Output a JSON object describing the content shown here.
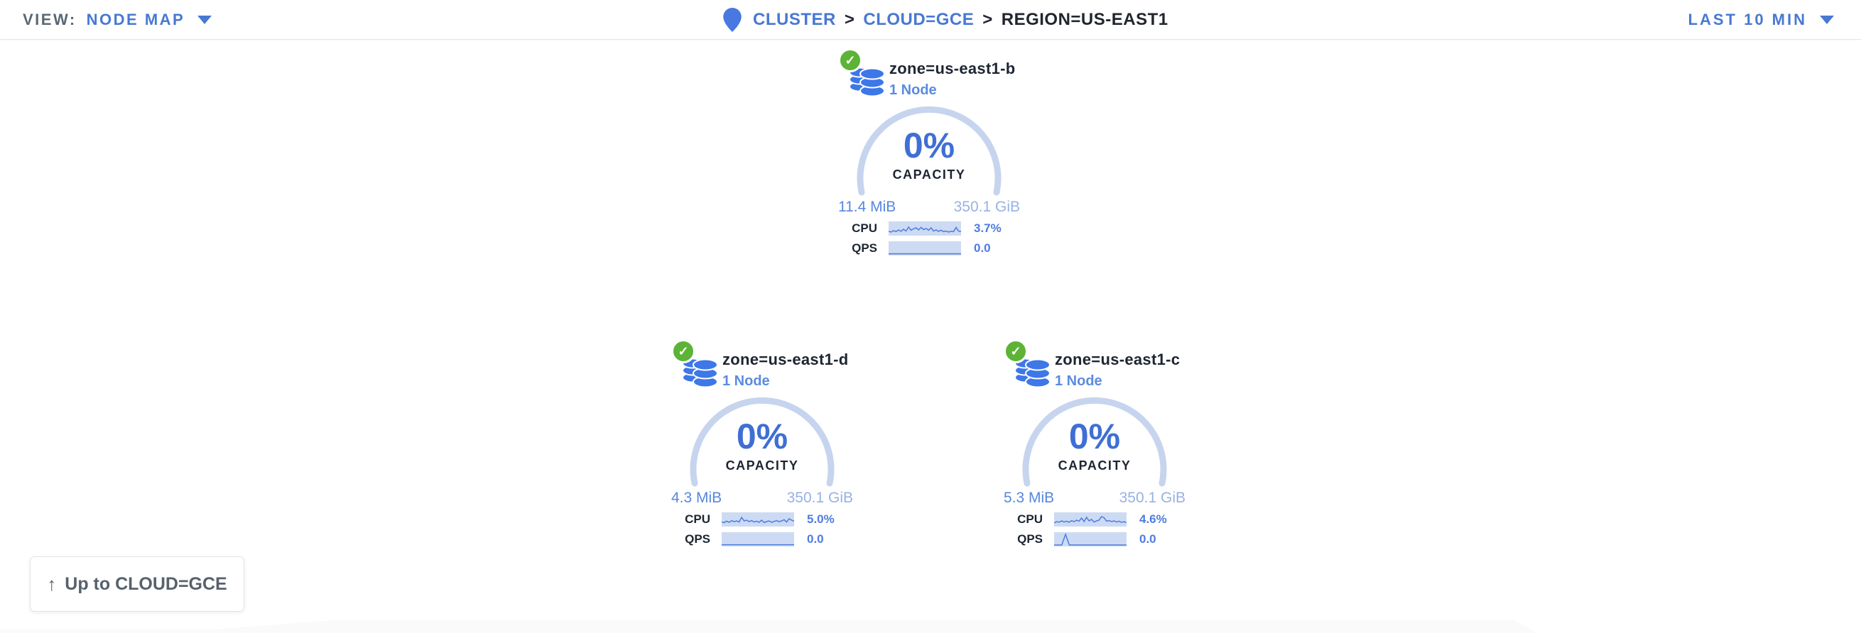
{
  "header": {
    "view_label": "VIEW:",
    "view_value": "NODE MAP",
    "time_range": "LAST 10 MIN",
    "breadcrumb": {
      "separator": ">",
      "items": [
        {
          "label": "CLUSTER"
        },
        {
          "label": "CLOUD=GCE"
        },
        {
          "label": "REGION=US-EAST1"
        }
      ]
    }
  },
  "icons": {
    "location_pin": "map-pin-shape",
    "chevron_down": "▼",
    "healthy_check": "✓",
    "zone": "database-cylinders",
    "up_arrow": "↑"
  },
  "colors": {
    "link_blue": "#4878d2",
    "pct_blue": "#3f6fd4",
    "subtitle_blue": "#5b8be0",
    "used_blue": "#5787dd",
    "total_blue": "#97b1e4",
    "arc_blue": "#c7d4ee",
    "spark_bg": "#cddaf3",
    "spark_line": "#4d7ce0",
    "healthy_green": "#5cb335",
    "db_icon_blue": "#3d77e8",
    "text_dark": "#1d2532"
  },
  "cards": [
    {
      "title": "zone=us-east1-b",
      "subtitle": "1 Node",
      "capacity_pct": "0%",
      "capacity_label": "CAPACITY",
      "used": "11.4 MiB",
      "total": "350.1 GiB",
      "metrics": [
        {
          "label": "CPU",
          "value": "3.7%",
          "spark": [
            0.7,
            0.75,
            0.65,
            0.72,
            0.6,
            0.7,
            0.55,
            0.68,
            0.4,
            0.62,
            0.52,
            0.45,
            0.6,
            0.42,
            0.58,
            0.5,
            0.62,
            0.45,
            0.68,
            0.6,
            0.7,
            0.62,
            0.72,
            0.68,
            0.75,
            0.7,
            0.72,
            0.42,
            0.68,
            0.72
          ]
        },
        {
          "label": "QPS",
          "value": "0.0",
          "spark": [
            0.88,
            0.88,
            0.88,
            0.88,
            0.88,
            0.88,
            0.88,
            0.88,
            0.88,
            0.88
          ]
        }
      ]
    },
    {
      "title": "zone=us-east1-d",
      "subtitle": "1 Node",
      "capacity_pct": "0%",
      "capacity_label": "CAPACITY",
      "used": "4.3 MiB",
      "total": "350.1 GiB",
      "metrics": [
        {
          "label": "CPU",
          "value": "5.0%",
          "spark": [
            0.68,
            0.72,
            0.62,
            0.7,
            0.58,
            0.66,
            0.6,
            0.68,
            0.35,
            0.6,
            0.55,
            0.65,
            0.58,
            0.68,
            0.62,
            0.7,
            0.55,
            0.72,
            0.65,
            0.6,
            0.7,
            0.64,
            0.58,
            0.66,
            0.6,
            0.52,
            0.68,
            0.45,
            0.55,
            0.62
          ]
        },
        {
          "label": "QPS",
          "value": "0.0",
          "spark": [
            0.88,
            0.88,
            0.88,
            0.88,
            0.88,
            0.88,
            0.88,
            0.88,
            0.88,
            0.88
          ]
        }
      ]
    },
    {
      "title": "zone=us-east1-c",
      "subtitle": "1 Node",
      "capacity_pct": "0%",
      "capacity_label": "CAPACITY",
      "used": "5.3 MiB",
      "total": "350.1 GiB",
      "metrics": [
        {
          "label": "CPU",
          "value": "4.6%",
          "spark": [
            0.75,
            0.65,
            0.7,
            0.6,
            0.68,
            0.62,
            0.7,
            0.58,
            0.66,
            0.55,
            0.62,
            0.4,
            0.65,
            0.35,
            0.6,
            0.5,
            0.68,
            0.6,
            0.55,
            0.3,
            0.38,
            0.62,
            0.58,
            0.65,
            0.6,
            0.68,
            0.62,
            0.7,
            0.66,
            0.72
          ]
        },
        {
          "label": "QPS",
          "value": "0.0",
          "spark": [
            0.9,
            0.9,
            0.9,
            0.15,
            0.9,
            0.9,
            0.9,
            0.9,
            0.9,
            0.9,
            0.9,
            0.9,
            0.9,
            0.9,
            0.9,
            0.9,
            0.9,
            0.9,
            0.9,
            0.9
          ]
        }
      ]
    }
  ],
  "up_button": {
    "label": "Up to CLOUD=GCE",
    "arrow": "↑"
  }
}
